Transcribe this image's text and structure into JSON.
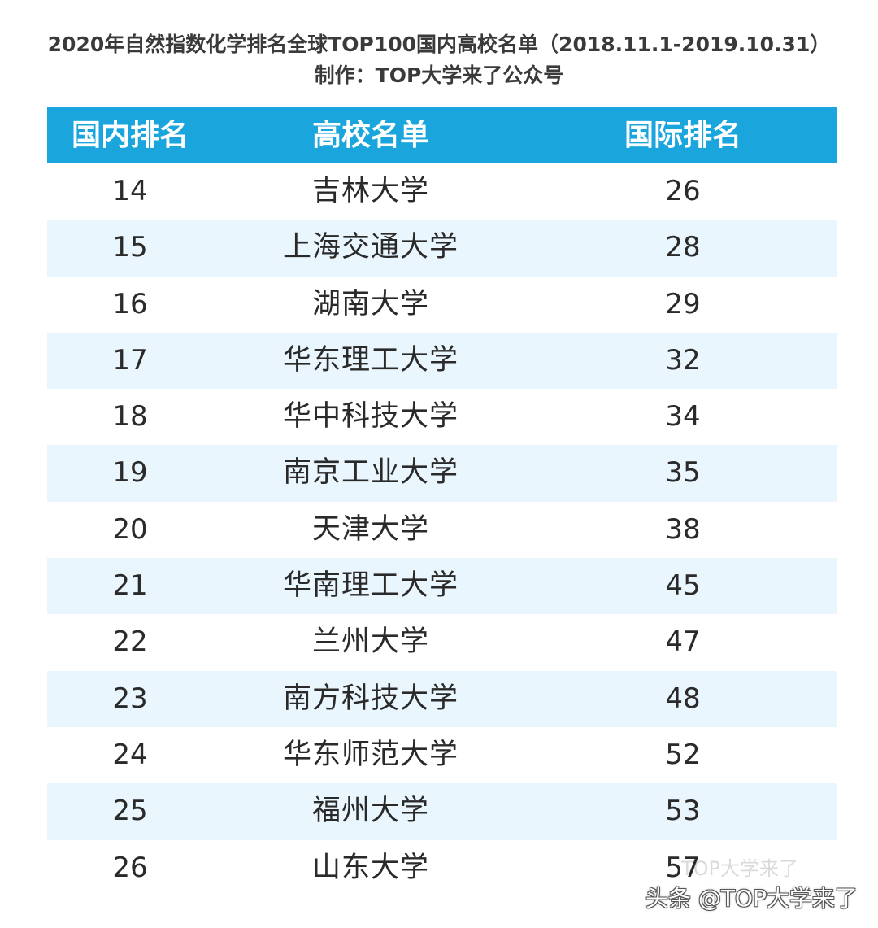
{
  "title": "2020年自然指数化学排名全球TOP100国内高校名单（2018.11.1-2019.10.31）",
  "subtitle": "制作：TOP大学来了公众号",
  "table": {
    "headers": [
      "国内排名",
      "高校名单",
      "国际排名"
    ],
    "rows": [
      {
        "domestic": "14",
        "school": "吉林大学",
        "international": "26"
      },
      {
        "domestic": "15",
        "school": "上海交通大学",
        "international": "28"
      },
      {
        "domestic": "16",
        "school": "湖南大学",
        "international": "29"
      },
      {
        "domestic": "17",
        "school": "华东理工大学",
        "international": "32"
      },
      {
        "domestic": "18",
        "school": "华中科技大学",
        "international": "34"
      },
      {
        "domestic": "19",
        "school": "南京工业大学",
        "international": "35"
      },
      {
        "domestic": "20",
        "school": "天津大学",
        "international": "38"
      },
      {
        "domestic": "21",
        "school": "华南理工大学",
        "international": "45"
      },
      {
        "domestic": "22",
        "school": "兰州大学",
        "international": "47"
      },
      {
        "domestic": "23",
        "school": "南方科技大学",
        "international": "48"
      },
      {
        "domestic": "24",
        "school": "华东师范大学",
        "international": "52"
      },
      {
        "domestic": "25",
        "school": "福州大学",
        "international": "53"
      },
      {
        "domestic": "26",
        "school": "山东大学",
        "international": "57"
      }
    ]
  },
  "watermark": {
    "faint": "TOP大学来了",
    "text": "头条 @TOP大学来了"
  },
  "colors": {
    "header_bg": "#1aa6dc",
    "alt_row_bg": "#eaf6fd",
    "header_text": "#ffffff"
  }
}
